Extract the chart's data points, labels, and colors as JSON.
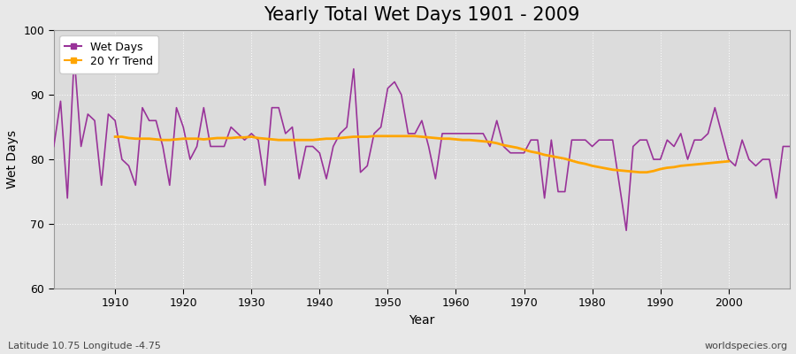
{
  "title": "Yearly Total Wet Days 1901 - 2009",
  "xlabel": "Year",
  "ylabel": "Wet Days",
  "subtitle": "Latitude 10.75 Longitude -4.75",
  "watermark": "worldspecies.org",
  "years": [
    1901,
    1902,
    1903,
    1904,
    1905,
    1906,
    1907,
    1908,
    1909,
    1910,
    1911,
    1912,
    1913,
    1914,
    1915,
    1916,
    1917,
    1918,
    1919,
    1920,
    1921,
    1922,
    1923,
    1924,
    1925,
    1926,
    1927,
    1928,
    1929,
    1930,
    1931,
    1932,
    1933,
    1934,
    1935,
    1936,
    1937,
    1938,
    1939,
    1940,
    1941,
    1942,
    1943,
    1944,
    1945,
    1946,
    1947,
    1948,
    1949,
    1950,
    1951,
    1952,
    1953,
    1954,
    1955,
    1956,
    1957,
    1958,
    1959,
    1960,
    1961,
    1962,
    1963,
    1964,
    1965,
    1966,
    1967,
    1968,
    1969,
    1970,
    1971,
    1972,
    1973,
    1974,
    1975,
    1976,
    1977,
    1978,
    1979,
    1980,
    1981,
    1982,
    1983,
    1984,
    1985,
    1986,
    1987,
    1988,
    1989,
    1990,
    1991,
    1992,
    1993,
    1994,
    1995,
    1996,
    1997,
    1998,
    1999,
    2000,
    2001,
    2002,
    2003,
    2004,
    2005,
    2006,
    2007,
    2008,
    2009
  ],
  "wet_days": [
    82,
    89,
    74,
    96,
    82,
    87,
    86,
    76,
    87,
    86,
    80,
    79,
    76,
    88,
    86,
    86,
    82,
    76,
    88,
    85,
    80,
    82,
    88,
    82,
    82,
    82,
    85,
    84,
    83,
    84,
    83,
    76,
    88,
    88,
    84,
    85,
    77,
    82,
    82,
    81,
    77,
    82,
    84,
    85,
    94,
    78,
    79,
    84,
    85,
    91,
    92,
    90,
    84,
    84,
    86,
    82,
    77,
    84,
    84,
    84,
    84,
    84,
    84,
    84,
    82,
    86,
    82,
    81,
    81,
    81,
    83,
    83,
    74,
    83,
    75,
    75,
    83,
    83,
    83,
    82,
    83,
    83,
    83,
    76,
    69,
    82,
    83,
    83,
    80,
    80,
    83,
    82,
    84,
    80,
    83,
    83,
    84,
    88,
    84,
    80,
    79,
    83,
    80,
    79,
    80,
    80,
    74,
    82,
    82
  ],
  "trend_values": [
    null,
    null,
    null,
    null,
    null,
    null,
    null,
    null,
    null,
    83.5,
    83.5,
    83.3,
    83.2,
    83.2,
    83.2,
    83.1,
    83.0,
    83.0,
    83.1,
    83.2,
    83.2,
    83.2,
    83.1,
    83.2,
    83.3,
    83.3,
    83.3,
    83.4,
    83.4,
    83.5,
    83.3,
    83.2,
    83.1,
    83.0,
    83.0,
    83.0,
    83.0,
    83.0,
    83.0,
    83.1,
    83.2,
    83.2,
    83.3,
    83.4,
    83.5,
    83.5,
    83.5,
    83.6,
    83.6,
    83.6,
    83.6,
    83.6,
    83.6,
    83.6,
    83.5,
    83.4,
    83.3,
    83.2,
    83.2,
    83.1,
    83.0,
    83.0,
    82.9,
    82.8,
    82.7,
    82.5,
    82.2,
    82.0,
    81.8,
    81.5,
    81.2,
    81.0,
    80.7,
    80.5,
    80.3,
    80.1,
    79.8,
    79.5,
    79.3,
    79.0,
    78.8,
    78.6,
    78.4,
    78.3,
    78.2,
    78.1,
    78.0,
    78.0,
    78.2,
    78.5,
    78.7,
    78.8,
    79.0,
    79.1,
    79.2,
    79.3,
    79.4,
    79.5,
    79.6,
    79.7,
    null,
    null,
    null,
    null,
    null,
    null,
    null,
    null,
    null
  ],
  "wet_days_color": "#993399",
  "trend_color": "#FFA500",
  "bg_color": "#E8E8E8",
  "plot_bg_color": "#DCDCDC",
  "ylim": [
    60,
    100
  ],
  "yticks": [
    60,
    70,
    80,
    90,
    100
  ],
  "xlim_start": 1901,
  "xlim_end": 2009,
  "decade_ticks": [
    1910,
    1920,
    1930,
    1940,
    1950,
    1960,
    1970,
    1980,
    1990,
    2000
  ],
  "title_fontsize": 15,
  "axis_fontsize": 10,
  "tick_fontsize": 9,
  "legend_fontsize": 9
}
